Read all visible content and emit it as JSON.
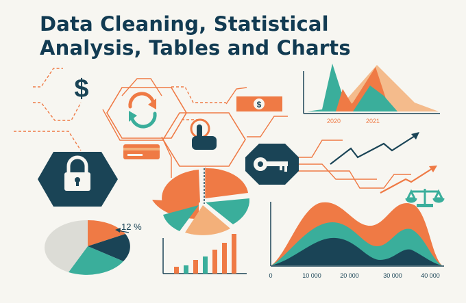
{
  "title": {
    "line1": "Data Cleaning, Statistical",
    "line2": "Analysis, Tables and Charts"
  },
  "colors": {
    "navy": "#1a4456",
    "orange": "#ef7a45",
    "teal": "#3aae9b",
    "peach": "#f3b07a",
    "background": "#f7f6f1",
    "grey": "#dcdcd6"
  },
  "icons": [
    "dollar-icon",
    "refresh-icon",
    "money-bill-icon",
    "hand-pointer-icon",
    "credit-card-icon",
    "padlock-icon",
    "key-icon",
    "balance-scale-icon",
    "trend-arrow-icon"
  ],
  "top_area_chart": {
    "x_labels": [
      "2020",
      "2021"
    ]
  },
  "pie_label": "12 %",
  "bottom_area_chart": {
    "x_labels": [
      "0",
      "10 000",
      "20 000",
      "30 000",
      "40 000"
    ]
  },
  "chart_data": [
    {
      "type": "area",
      "x": [
        "2020",
        "2021"
      ],
      "xlabel": "",
      "ylabel": ""
    },
    {
      "type": "pie",
      "values": [
        12
      ],
      "annotations": [
        "12 %"
      ]
    },
    {
      "type": "bar",
      "values": [
        1,
        1.2,
        2,
        2.5,
        3.5,
        4.5,
        5.8
      ]
    },
    {
      "type": "area",
      "x": [
        0,
        10000,
        20000,
        30000,
        40000
      ],
      "xlim": [
        0,
        40000
      ]
    }
  ]
}
